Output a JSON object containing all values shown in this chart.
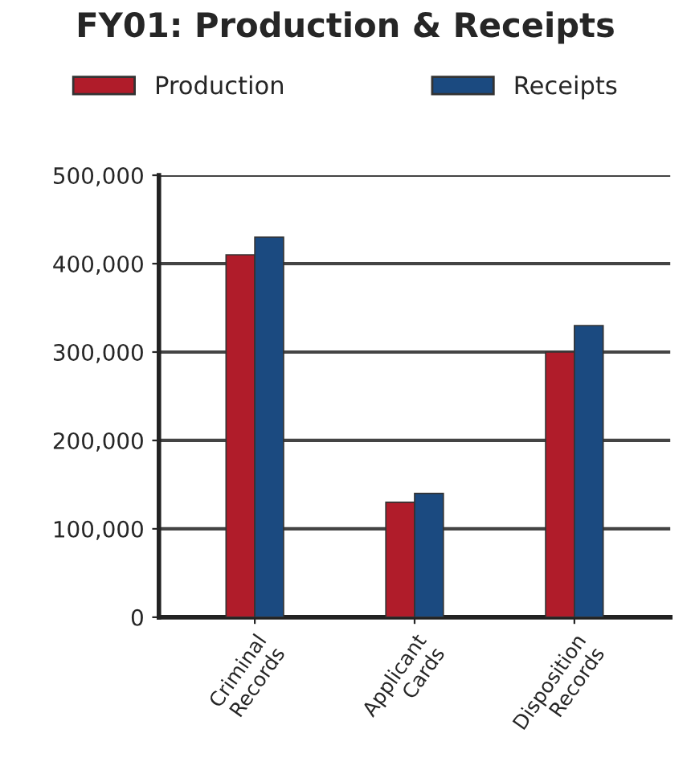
{
  "chart_data": {
    "type": "bar",
    "title": "FY01: Production & Receipts",
    "categories": [
      "Criminal\nRecords",
      "Applicant\nCards",
      "Disposition\nRecords"
    ],
    "series": [
      {
        "name": "Production",
        "color": "#b01c2a",
        "values": [
          410000,
          130000,
          300000
        ]
      },
      {
        "name": "Receipts",
        "color": "#1b4a80",
        "values": [
          430000,
          140000,
          330000
        ]
      }
    ],
    "ylim": [
      0,
      500000
    ],
    "yticks": [
      {
        "value": 0,
        "label": "0"
      },
      {
        "value": 100000,
        "label": "100,000"
      },
      {
        "value": 200000,
        "label": "200,000"
      },
      {
        "value": 300000,
        "label": "300,000"
      },
      {
        "value": 400000,
        "label": "400,000"
      },
      {
        "value": 500000,
        "label": "500,000"
      }
    ],
    "grid": "y",
    "legend": "top"
  }
}
